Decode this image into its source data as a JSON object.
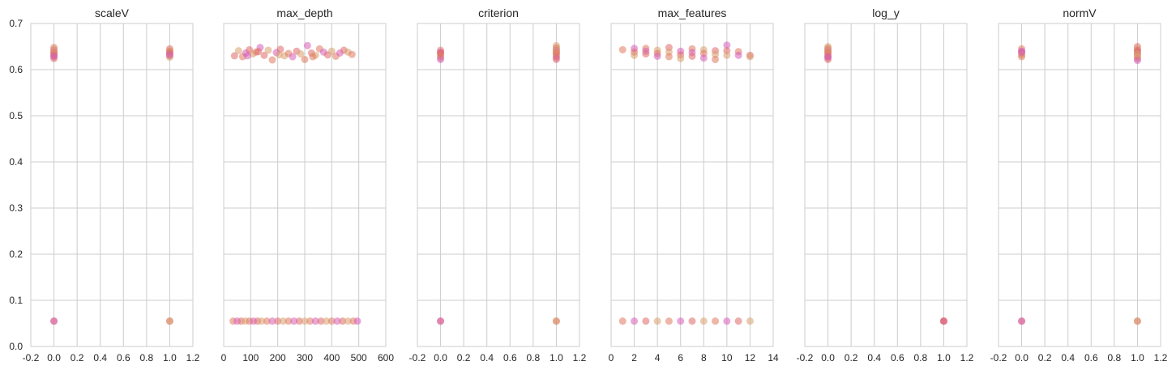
{
  "chart_data": [
    {
      "type": "scatter",
      "title": "scaleV",
      "xlim": [
        -0.2,
        1.2
      ],
      "ylim": [
        0,
        0.7
      ],
      "xticks": [
        "-0.2",
        "0.0",
        "0.2",
        "0.4",
        "0.6",
        "0.8",
        "1.0",
        "1.2"
      ],
      "yticks": [
        "0.0",
        "0.1",
        "0.2",
        "0.3",
        "0.4",
        "0.5",
        "0.6",
        "0.7"
      ],
      "show_yticklabels": true,
      "points": [
        [
          0,
          0.055
        ],
        [
          0,
          0.055
        ],
        [
          1,
          0.055
        ],
        [
          1,
          0.055
        ],
        [
          0,
          0.648
        ],
        [
          0,
          0.642
        ],
        [
          0,
          0.638
        ],
        [
          0,
          0.635
        ],
        [
          0,
          0.632
        ],
        [
          0,
          0.628
        ],
        [
          0,
          0.624
        ],
        [
          0,
          0.644
        ],
        [
          0,
          0.636
        ],
        [
          0,
          0.63
        ],
        [
          1,
          0.645
        ],
        [
          1,
          0.641
        ],
        [
          1,
          0.637
        ],
        [
          1,
          0.634
        ],
        [
          1,
          0.63
        ],
        [
          1,
          0.627
        ],
        [
          1,
          0.639
        ],
        [
          1,
          0.632
        ]
      ]
    },
    {
      "type": "scatter",
      "title": "max_depth",
      "xlim": [
        0,
        600
      ],
      "ylim": [
        0,
        0.7
      ],
      "xticks": [
        "0",
        "100",
        "200",
        "300",
        "400",
        "500",
        "600"
      ],
      "yticks": [
        "0.0",
        "0.1",
        "0.2",
        "0.3",
        "0.4",
        "0.5",
        "0.6",
        "0.7"
      ],
      "show_yticklabels": false,
      "points": [
        [
          35,
          0.055
        ],
        [
          50,
          0.055
        ],
        [
          65,
          0.055
        ],
        [
          80,
          0.055
        ],
        [
          95,
          0.055
        ],
        [
          110,
          0.055
        ],
        [
          125,
          0.055
        ],
        [
          140,
          0.055
        ],
        [
          160,
          0.055
        ],
        [
          180,
          0.055
        ],
        [
          200,
          0.055
        ],
        [
          220,
          0.055
        ],
        [
          240,
          0.055
        ],
        [
          260,
          0.055
        ],
        [
          280,
          0.055
        ],
        [
          300,
          0.055
        ],
        [
          320,
          0.055
        ],
        [
          340,
          0.055
        ],
        [
          360,
          0.055
        ],
        [
          380,
          0.055
        ],
        [
          400,
          0.055
        ],
        [
          420,
          0.055
        ],
        [
          440,
          0.055
        ],
        [
          460,
          0.055
        ],
        [
          480,
          0.055
        ],
        [
          495,
          0.055
        ],
        [
          40,
          0.63
        ],
        [
          55,
          0.641
        ],
        [
          70,
          0.628
        ],
        [
          82,
          0.636
        ],
        [
          95,
          0.643
        ],
        [
          108,
          0.634
        ],
        [
          120,
          0.638
        ],
        [
          135,
          0.648
        ],
        [
          150,
          0.631
        ],
        [
          165,
          0.642
        ],
        [
          180,
          0.621
        ],
        [
          195,
          0.637
        ],
        [
          210,
          0.644
        ],
        [
          225,
          0.63
        ],
        [
          240,
          0.635
        ],
        [
          255,
          0.628
        ],
        [
          270,
          0.64
        ],
        [
          285,
          0.634
        ],
        [
          300,
          0.622
        ],
        [
          310,
          0.652
        ],
        [
          325,
          0.636
        ],
        [
          340,
          0.631
        ],
        [
          355,
          0.645
        ],
        [
          370,
          0.638
        ],
        [
          385,
          0.632
        ],
        [
          400,
          0.64
        ],
        [
          415,
          0.629
        ],
        [
          430,
          0.636
        ],
        [
          445,
          0.642
        ],
        [
          460,
          0.638
        ],
        [
          475,
          0.633
        ],
        [
          88,
          0.63
        ],
        [
          128,
          0.639
        ],
        [
          205,
          0.632
        ],
        [
          330,
          0.628
        ]
      ]
    },
    {
      "type": "scatter",
      "title": "criterion",
      "xlim": [
        -0.2,
        1.2
      ],
      "ylim": [
        0,
        0.7
      ],
      "xticks": [
        "-0.2",
        "0.0",
        "0.2",
        "0.4",
        "0.6",
        "0.8",
        "1.0",
        "1.2"
      ],
      "yticks": [
        "0.0",
        "0.1",
        "0.2",
        "0.3",
        "0.4",
        "0.5",
        "0.6",
        "0.7"
      ],
      "show_yticklabels": false,
      "points": [
        [
          0,
          0.055
        ],
        [
          0,
          0.055
        ],
        [
          1,
          0.055
        ],
        [
          1,
          0.055
        ],
        [
          0,
          0.642
        ],
        [
          0,
          0.638
        ],
        [
          0,
          0.634
        ],
        [
          0,
          0.63
        ],
        [
          0,
          0.626
        ],
        [
          0,
          0.622
        ],
        [
          0,
          0.636
        ],
        [
          1,
          0.652
        ],
        [
          1,
          0.647
        ],
        [
          1,
          0.642
        ],
        [
          1,
          0.638
        ],
        [
          1,
          0.634
        ],
        [
          1,
          0.63
        ],
        [
          1,
          0.626
        ],
        [
          1,
          0.622
        ],
        [
          1,
          0.645
        ],
        [
          1,
          0.636
        ]
      ]
    },
    {
      "type": "scatter",
      "title": "max_features",
      "xlim": [
        0,
        14
      ],
      "ylim": [
        0,
        0.7
      ],
      "xticks": [
        "0",
        "2",
        "4",
        "6",
        "8",
        "10",
        "12",
        "14"
      ],
      "yticks": [
        "0.0",
        "0.1",
        "0.2",
        "0.3",
        "0.4",
        "0.5",
        "0.6",
        "0.7"
      ],
      "show_yticklabels": false,
      "points": [
        [
          1,
          0.055
        ],
        [
          2,
          0.055
        ],
        [
          3,
          0.055
        ],
        [
          4,
          0.055
        ],
        [
          5,
          0.055
        ],
        [
          6,
          0.055
        ],
        [
          7,
          0.055
        ],
        [
          8,
          0.055
        ],
        [
          9,
          0.055
        ],
        [
          10,
          0.055
        ],
        [
          11,
          0.055
        ],
        [
          12,
          0.055
        ],
        [
          1,
          0.643
        ],
        [
          2,
          0.646
        ],
        [
          2,
          0.638
        ],
        [
          2,
          0.631
        ],
        [
          3,
          0.646
        ],
        [
          3,
          0.64
        ],
        [
          3,
          0.634
        ],
        [
          4,
          0.642
        ],
        [
          4,
          0.635
        ],
        [
          4,
          0.629
        ],
        [
          5,
          0.648
        ],
        [
          5,
          0.638
        ],
        [
          5,
          0.628
        ],
        [
          6,
          0.64
        ],
        [
          6,
          0.632
        ],
        [
          6,
          0.624
        ],
        [
          7,
          0.645
        ],
        [
          7,
          0.637
        ],
        [
          7,
          0.629
        ],
        [
          8,
          0.643
        ],
        [
          8,
          0.635
        ],
        [
          8,
          0.625
        ],
        [
          9,
          0.641
        ],
        [
          9,
          0.633
        ],
        [
          9,
          0.622
        ],
        [
          10,
          0.653
        ],
        [
          10,
          0.641
        ],
        [
          10,
          0.631
        ],
        [
          11,
          0.639
        ],
        [
          11,
          0.631
        ],
        [
          12,
          0.631
        ],
        [
          12,
          0.628
        ]
      ]
    },
    {
      "type": "scatter",
      "title": "log_y",
      "xlim": [
        -0.2,
        1.2
      ],
      "ylim": [
        0,
        0.7
      ],
      "xticks": [
        "-0.2",
        "0.0",
        "0.2",
        "0.4",
        "0.6",
        "0.8",
        "1.0",
        "1.2"
      ],
      "yticks": [
        "0.0",
        "0.1",
        "0.2",
        "0.3",
        "0.4",
        "0.5",
        "0.6",
        "0.7"
      ],
      "show_yticklabels": false,
      "points": [
        [
          1,
          0.055
        ],
        [
          1,
          0.055
        ],
        [
          1,
          0.055
        ],
        [
          0,
          0.65
        ],
        [
          0,
          0.646
        ],
        [
          0,
          0.642
        ],
        [
          0,
          0.638
        ],
        [
          0,
          0.634
        ],
        [
          0,
          0.63
        ],
        [
          0,
          0.626
        ],
        [
          0,
          0.622
        ],
        [
          0,
          0.644
        ],
        [
          0,
          0.636
        ],
        [
          0,
          0.628
        ]
      ]
    },
    {
      "type": "scatter",
      "title": "normV",
      "xlim": [
        -0.2,
        1.2
      ],
      "ylim": [
        0,
        0.7
      ],
      "xticks": [
        "-0.2",
        "0.0",
        "0.2",
        "0.4",
        "0.6",
        "0.8",
        "1.0",
        "1.2"
      ],
      "yticks": [
        "0.0",
        "0.1",
        "0.2",
        "0.3",
        "0.4",
        "0.5",
        "0.6",
        "0.7"
      ],
      "show_yticklabels": false,
      "points": [
        [
          0,
          0.055
        ],
        [
          0,
          0.055
        ],
        [
          1,
          0.055
        ],
        [
          1,
          0.055
        ],
        [
          0,
          0.645
        ],
        [
          0,
          0.64
        ],
        [
          0,
          0.636
        ],
        [
          0,
          0.632
        ],
        [
          0,
          0.628
        ],
        [
          0,
          0.638
        ],
        [
          1,
          0.65
        ],
        [
          1,
          0.645
        ],
        [
          1,
          0.64
        ],
        [
          1,
          0.636
        ],
        [
          1,
          0.632
        ],
        [
          1,
          0.628
        ],
        [
          1,
          0.624
        ],
        [
          1,
          0.62
        ],
        [
          1,
          0.642
        ],
        [
          1,
          0.634
        ]
      ]
    }
  ],
  "colors": {
    "points": [
      "#e07a5f",
      "#d65fb8",
      "#e06a6a",
      "#d9a070"
    ],
    "grid": "#cccccc",
    "text": "#262626",
    "background": "#ffffff"
  }
}
